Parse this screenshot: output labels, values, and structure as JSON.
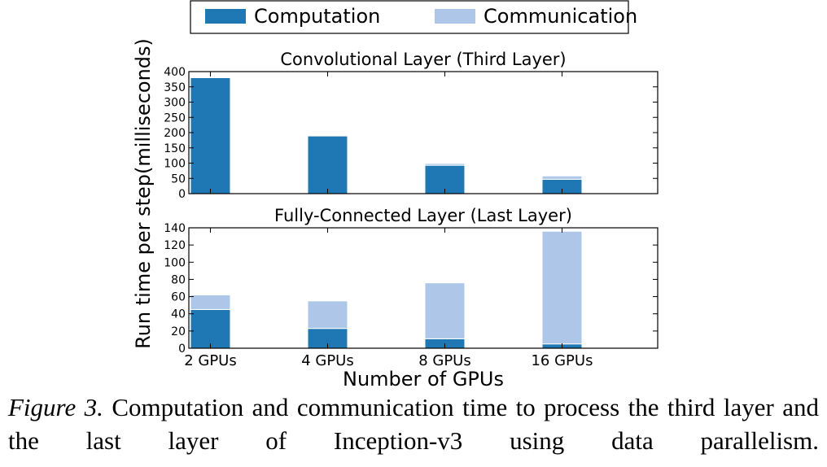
{
  "legend": {
    "items": [
      {
        "label": "Computation",
        "color": "#1f77b4"
      },
      {
        "label": "Communication",
        "color": "#aec7e8"
      }
    ]
  },
  "shared_axes": {
    "ylabel": "Run time per step(milliseconds)",
    "xlabel": "Number of GPUs"
  },
  "chart_data": [
    {
      "type": "bar",
      "stacked": true,
      "title": "Convolutional Layer (Third Layer)",
      "categories": [
        "2 GPUs",
        "4 GPUs",
        "8 GPUs",
        "16 GPUs"
      ],
      "series": [
        {
          "name": "Computation",
          "values": [
            380,
            189,
            93,
            47
          ]
        },
        {
          "name": "Communication",
          "values": [
            0,
            0,
            6,
            11
          ]
        }
      ],
      "ylim": [
        0,
        400
      ],
      "yticks": [
        0,
        50,
        100,
        150,
        200,
        250,
        300,
        350,
        400
      ],
      "show_xticklabels": false,
      "grid": false,
      "legend_position": "top-center"
    },
    {
      "type": "bar",
      "stacked": true,
      "title": "Fully-Connected Layer (Last Layer)",
      "categories": [
        "2 GPUs",
        "4 GPUs",
        "8 GPUs",
        "16 GPUs"
      ],
      "series": [
        {
          "name": "Computation",
          "values": [
            45,
            23,
            11,
            5
          ]
        },
        {
          "name": "Communication",
          "values": [
            17,
            32,
            65,
            131
          ]
        }
      ],
      "ylim": [
        0,
        140
      ],
      "yticks": [
        0,
        20,
        40,
        60,
        80,
        100,
        120,
        140
      ],
      "show_xticklabels": true,
      "grid": false
    }
  ],
  "caption": {
    "label": "Figure 3.",
    "text": "Computation and communication time to process the third layer and the last layer of Inception-v3 using data parallelism."
  }
}
